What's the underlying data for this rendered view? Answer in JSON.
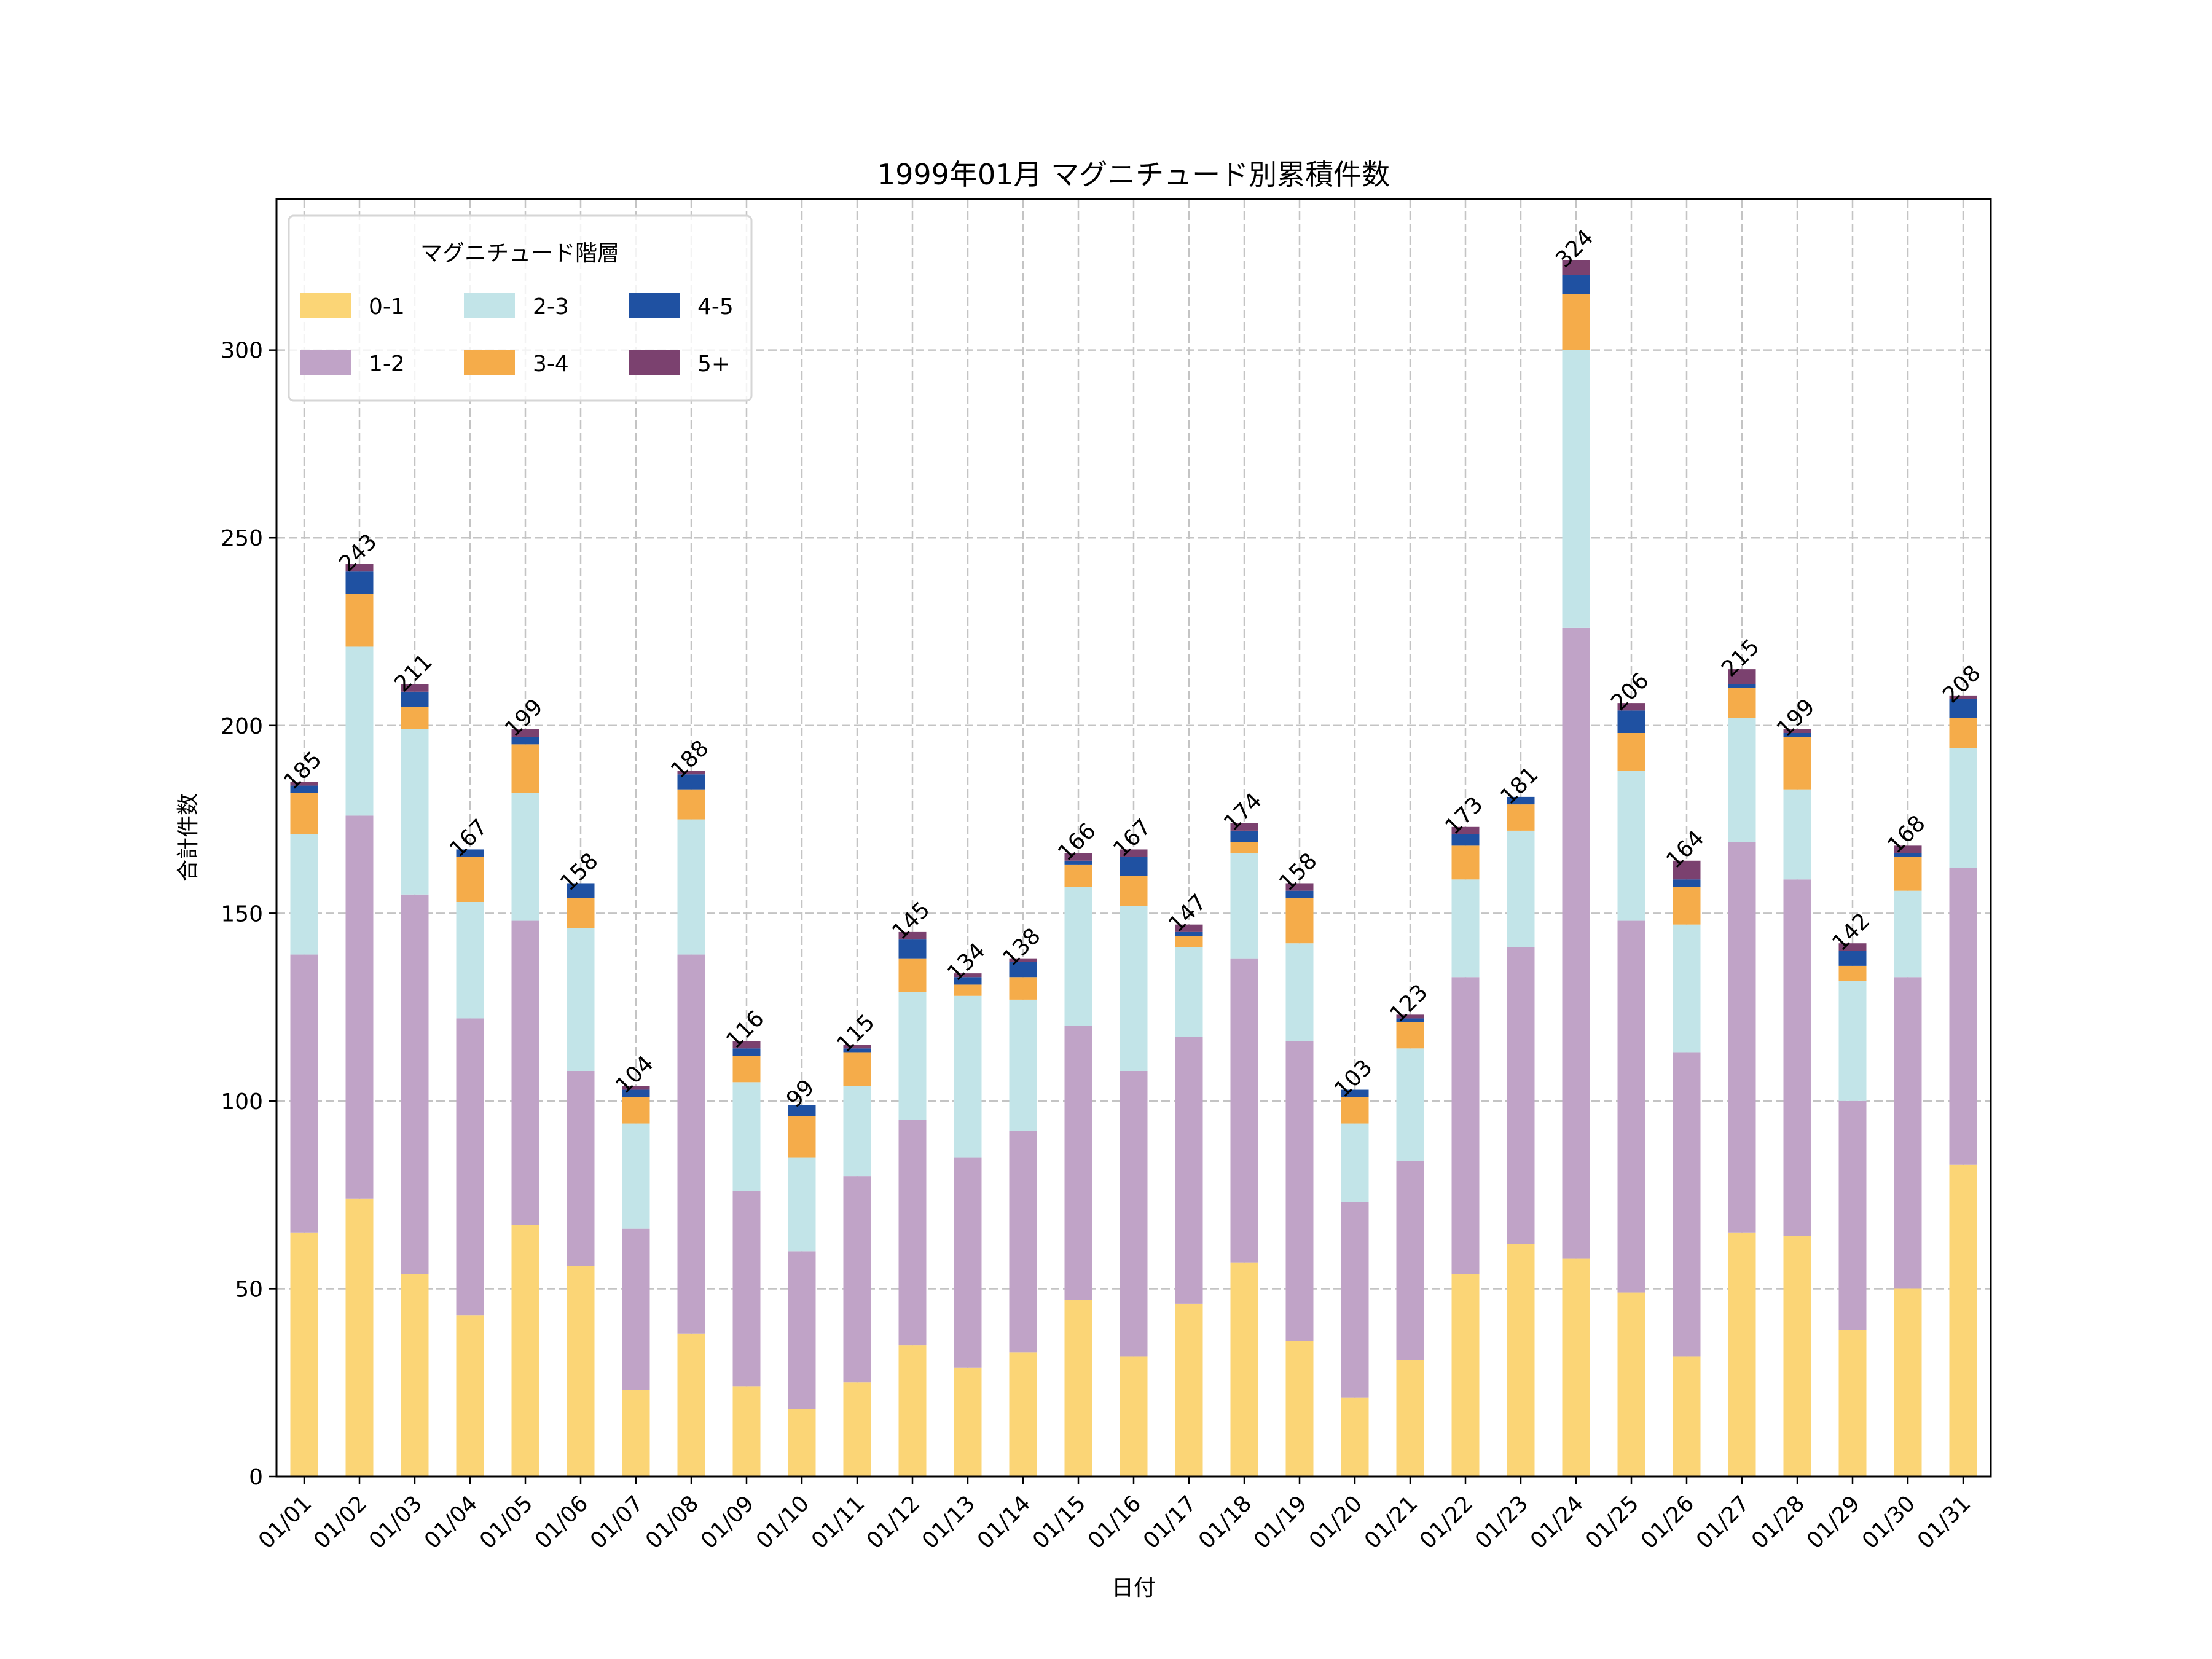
{
  "chart_data": {
    "type": "bar",
    "stacked": true,
    "title": "1999年01月 マグニチュード別累積件数",
    "xlabel": "日付",
    "ylabel": "合計件数",
    "ylim": [
      0,
      340.2
    ],
    "yticks": [
      0,
      50,
      100,
      150,
      200,
      250,
      300
    ],
    "grid": true,
    "legend": {
      "title": "マグニチュード階層",
      "placement": "top-left",
      "columns": 3
    },
    "categories": [
      "01/01",
      "01/02",
      "01/03",
      "01/04",
      "01/05",
      "01/06",
      "01/07",
      "01/08",
      "01/09",
      "01/10",
      "01/11",
      "01/12",
      "01/13",
      "01/14",
      "01/15",
      "01/16",
      "01/17",
      "01/18",
      "01/19",
      "01/20",
      "01/21",
      "01/22",
      "01/23",
      "01/24",
      "01/25",
      "01/26",
      "01/27",
      "01/28",
      "01/29",
      "01/30",
      "01/31"
    ],
    "series": [
      {
        "name": "0-1",
        "color": "#FBD576",
        "values": [
          65,
          74,
          54,
          43,
          67,
          56,
          23,
          38,
          24,
          18,
          25,
          35,
          29,
          33,
          47,
          32,
          46,
          57,
          36,
          21,
          31,
          54,
          62,
          58,
          49,
          32,
          65,
          64,
          39,
          50,
          83
        ]
      },
      {
        "name": "1-2",
        "color": "#C0A3C7",
        "values": [
          74,
          102,
          101,
          79,
          81,
          52,
          43,
          101,
          52,
          42,
          55,
          60,
          56,
          59,
          73,
          76,
          71,
          81,
          80,
          52,
          53,
          79,
          79,
          168,
          99,
          81,
          104,
          95,
          61,
          83,
          79
        ]
      },
      {
        "name": "2-3",
        "color": "#C2E4E8",
        "values": [
          32,
          45,
          44,
          31,
          34,
          38,
          28,
          36,
          29,
          25,
          24,
          34,
          43,
          35,
          37,
          44,
          24,
          28,
          26,
          21,
          30,
          26,
          31,
          74,
          40,
          34,
          33,
          24,
          32,
          23,
          32
        ]
      },
      {
        "name": "3-4",
        "color": "#F5AC4A",
        "values": [
          11,
          14,
          6,
          12,
          13,
          8,
          7,
          8,
          7,
          11,
          9,
          9,
          3,
          6,
          6,
          8,
          3,
          3,
          12,
          7,
          7,
          9,
          7,
          15,
          10,
          10,
          8,
          14,
          4,
          9,
          8
        ]
      },
      {
        "name": "4-5",
        "color": "#1F51A2",
        "values": [
          2,
          6,
          4,
          2,
          2,
          4,
          2,
          4,
          2,
          3,
          1,
          5,
          2,
          4,
          1,
          5,
          1,
          3,
          2,
          2,
          1,
          3,
          2,
          5,
          6,
          2,
          1,
          1,
          4,
          1,
          5
        ]
      },
      {
        "name": "5+",
        "color": "#7B416F",
        "values": [
          1,
          2,
          2,
          0,
          2,
          0,
          1,
          1,
          2,
          0,
          1,
          2,
          1,
          1,
          2,
          2,
          2,
          2,
          2,
          0,
          1,
          2,
          0,
          4,
          2,
          5,
          4,
          1,
          2,
          2,
          1
        ]
      }
    ],
    "totals": [
      185,
      243,
      211,
      167,
      199,
      158,
      104,
      188,
      116,
      99,
      115,
      145,
      134,
      138,
      166,
      167,
      147,
      174,
      158,
      103,
      123,
      173,
      181,
      324,
      206,
      164,
      215,
      199,
      142,
      168,
      208
    ]
  }
}
